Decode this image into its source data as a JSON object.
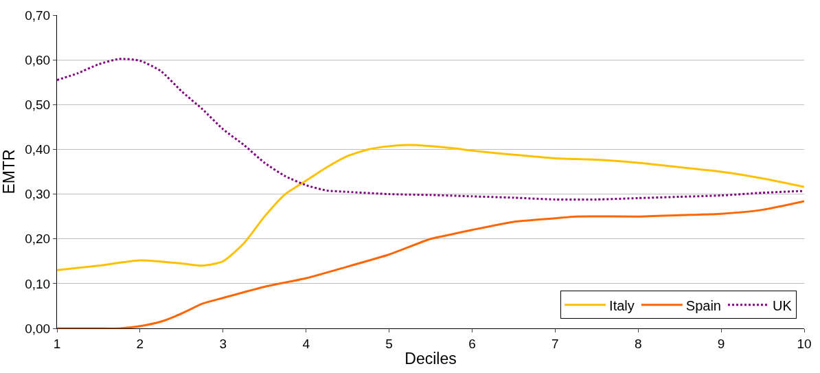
{
  "chart_data": {
    "type": "line",
    "xlabel": "Deciles",
    "ylabel": "EMTR",
    "xlim": [
      1,
      10
    ],
    "xticks": [
      1,
      2,
      3,
      4,
      5,
      6,
      7,
      8,
      9,
      10
    ],
    "ylim": [
      0,
      0.7
    ],
    "yticks": [
      {
        "value": 0,
        "label": "0,00"
      },
      {
        "value": 0.1,
        "label": "0,10"
      },
      {
        "value": 0.2,
        "label": "0,20"
      },
      {
        "value": 0.3,
        "label": "0,30"
      },
      {
        "value": 0.4,
        "label": "0,40"
      },
      {
        "value": 0.5,
        "label": "0,50"
      },
      {
        "value": 0.6,
        "label": "0,60"
      },
      {
        "value": 0.7,
        "label": "0,70"
      }
    ],
    "grid": "y",
    "legend": "bottom right",
    "marker": "none",
    "series": [
      {
        "name": "Italy",
        "color": "#ffc000",
        "line_style": "solid",
        "x": [
          1,
          1.5,
          2,
          2.5,
          2.75,
          3,
          3.25,
          3.5,
          3.75,
          4,
          4.25,
          4.5,
          4.75,
          5,
          5.25,
          5.75,
          6,
          6.5,
          7,
          7.5,
          8,
          8.5,
          9,
          9.5,
          10
        ],
        "values": [
          0.13,
          0.14,
          0.152,
          0.145,
          0.14,
          0.15,
          0.19,
          0.25,
          0.3,
          0.33,
          0.36,
          0.385,
          0.4,
          0.407,
          0.41,
          0.403,
          0.397,
          0.388,
          0.38,
          0.377,
          0.37,
          0.36,
          0.35,
          0.335,
          0.316
        ]
      },
      {
        "name": "Spain",
        "color": "#ff6600",
        "line_style": "solid",
        "x": [
          1,
          1.5,
          1.75,
          2,
          2.25,
          2.5,
          2.75,
          3,
          3.5,
          4,
          4.5,
          5,
          5.5,
          5.75,
          6,
          6.5,
          7,
          7.25,
          8,
          8.5,
          9,
          9.5,
          10
        ],
        "values": [
          0,
          0,
          0,
          0.005,
          0.015,
          0.033,
          0.055,
          0.068,
          0.093,
          0.112,
          0.138,
          0.165,
          0.2,
          0.21,
          0.22,
          0.238,
          0.246,
          0.25,
          0.25,
          0.253,
          0.256,
          0.265,
          0.284
        ]
      },
      {
        "name": "UK",
        "color": "#800080",
        "line_style": "dotted",
        "x": [
          1,
          1.25,
          1.5,
          1.75,
          2,
          2.25,
          2.5,
          2.75,
          3,
          3.25,
          3.5,
          3.75,
          4,
          4.25,
          4.5,
          5,
          5.5,
          6,
          6.5,
          7,
          7.5,
          8,
          8.5,
          9,
          9.5,
          10
        ],
        "values": [
          0.555,
          0.57,
          0.59,
          0.602,
          0.598,
          0.575,
          0.53,
          0.49,
          0.445,
          0.41,
          0.37,
          0.34,
          0.32,
          0.308,
          0.305,
          0.3,
          0.298,
          0.295,
          0.292,
          0.288,
          0.288,
          0.291,
          0.294,
          0.297,
          0.303,
          0.307
        ]
      }
    ]
  }
}
